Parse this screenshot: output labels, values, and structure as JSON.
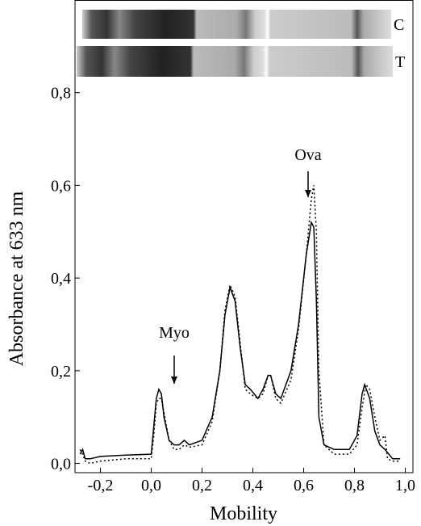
{
  "chart_data": {
    "type": "line",
    "y_label": "Absorbance at 633 nm",
    "x_label": "Mobility",
    "xlim": [
      -0.3,
      1.03
    ],
    "ylim": [
      -0.02,
      1.0
    ],
    "xticks": [
      {
        "value": -0.2,
        "label": "-0,2"
      },
      {
        "value": 0,
        "label": "0,0"
      },
      {
        "value": 0.2,
        "label": "0,2"
      },
      {
        "value": 0.4,
        "label": "0,4"
      },
      {
        "value": 0.6,
        "label": "0,6"
      },
      {
        "value": 0.8,
        "label": "0,8"
      },
      {
        "value": 1.0,
        "label": "1,0"
      }
    ],
    "yticks": [
      {
        "value": 0,
        "label": "0,0"
      },
      {
        "value": 0.2,
        "label": "0,2"
      },
      {
        "value": 0.4,
        "label": "0,4"
      },
      {
        "value": 0.6,
        "label": "0,6"
      },
      {
        "value": 0.8,
        "label": "0,8"
      }
    ],
    "annotations": [
      "Myo",
      "Ova"
    ],
    "lane_labels": [
      "C",
      "T"
    ],
    "series": [
      {
        "color": "#000",
        "dash": "none",
        "x": [
          -0.28,
          -0.27,
          -0.26,
          -0.24,
          -0.2,
          -0.1,
          0.0,
          0.01,
          0.02,
          0.03,
          0.04,
          0.05,
          0.07,
          0.09,
          0.11,
          0.13,
          0.15,
          0.2,
          0.24,
          0.27,
          0.29,
          0.31,
          0.33,
          0.35,
          0.37,
          0.39,
          0.42,
          0.44,
          0.46,
          0.47,
          0.49,
          0.51,
          0.55,
          0.58,
          0.61,
          0.63,
          0.64,
          0.65,
          0.66,
          0.68,
          0.72,
          0.78,
          0.81,
          0.83,
          0.84,
          0.86,
          0.88,
          0.9,
          0.92,
          0.95,
          0.98
        ],
        "values": [
          0.02,
          0.03,
          0.01,
          0.01,
          0.015,
          0.018,
          0.02,
          0.08,
          0.14,
          0.16,
          0.15,
          0.1,
          0.05,
          0.04,
          0.04,
          0.05,
          0.04,
          0.05,
          0.1,
          0.2,
          0.32,
          0.38,
          0.35,
          0.25,
          0.17,
          0.16,
          0.14,
          0.16,
          0.19,
          0.19,
          0.15,
          0.14,
          0.2,
          0.3,
          0.45,
          0.52,
          0.51,
          0.35,
          0.1,
          0.04,
          0.03,
          0.03,
          0.06,
          0.15,
          0.17,
          0.14,
          0.07,
          0.04,
          0.03,
          0.01,
          0.01
        ]
      },
      {
        "color": "#000",
        "dash": "2,3",
        "x": [
          -0.28,
          -0.27,
          -0.26,
          -0.24,
          -0.2,
          -0.1,
          0.0,
          0.01,
          0.02,
          0.03,
          0.04,
          0.05,
          0.07,
          0.09,
          0.11,
          0.13,
          0.15,
          0.2,
          0.24,
          0.27,
          0.29,
          0.31,
          0.33,
          0.35,
          0.37,
          0.39,
          0.42,
          0.44,
          0.46,
          0.47,
          0.49,
          0.51,
          0.55,
          0.58,
          0.61,
          0.63,
          0.64,
          0.65,
          0.66,
          0.68,
          0.72,
          0.78,
          0.81,
          0.83,
          0.845,
          0.86,
          0.88,
          0.9,
          0.92,
          0.93,
          0.95,
          0.98
        ],
        "values": [
          0.03,
          0.02,
          0.005,
          0.0,
          0.005,
          0.01,
          0.01,
          0.06,
          0.13,
          0.14,
          0.14,
          0.11,
          0.05,
          0.03,
          0.03,
          0.04,
          0.035,
          0.04,
          0.09,
          0.2,
          0.33,
          0.385,
          0.36,
          0.26,
          0.16,
          0.15,
          0.14,
          0.15,
          0.19,
          0.19,
          0.14,
          0.13,
          0.18,
          0.29,
          0.45,
          0.57,
          0.6,
          0.5,
          0.2,
          0.04,
          0.02,
          0.02,
          0.04,
          0.12,
          0.17,
          0.16,
          0.1,
          0.05,
          0.06,
          0.01,
          0.005,
          0.005
        ]
      }
    ]
  }
}
